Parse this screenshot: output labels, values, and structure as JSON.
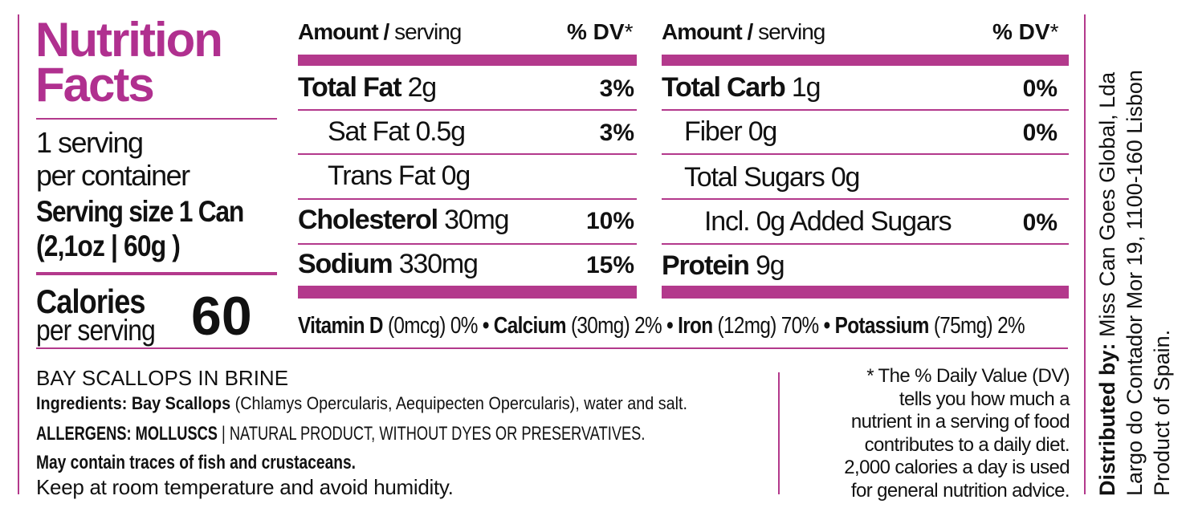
{
  "header": {
    "title_line1": "Nutrition",
    "title_line2": "Facts"
  },
  "servings": {
    "per_container_1": "1 serving",
    "per_container_2": "per container",
    "size_1": "Serving size 1 Can",
    "size_2": "(2,1oz | 60g )"
  },
  "calories": {
    "label": "Calories",
    "sublabel": "per serving",
    "value": 60
  },
  "table_left": {
    "header": {
      "amount": "Amount /",
      "serving": "serving",
      "dv": "% DV",
      "star": "*"
    },
    "rows": [
      {
        "name": "Total Fat",
        "amount": "2g",
        "dv": "3%"
      },
      {
        "name": "Sat Fat",
        "amount": "0.5g",
        "dv": "3%"
      },
      {
        "name": "Trans Fat",
        "amount": "0g"
      },
      {
        "name": "Cholesterol",
        "amount": "30mg",
        "dv": "10%"
      },
      {
        "name": "Sodium",
        "amount": "330mg",
        "dv": "15%"
      }
    ]
  },
  "table_right": {
    "header": {
      "amount": "Amount /",
      "serving": "serving",
      "dv": "% DV",
      "star": "*"
    },
    "rows": [
      {
        "name": "Total Carb",
        "amount": "1g",
        "dv": "0%"
      },
      {
        "name": "Fiber",
        "amount": "0g",
        "dv": "0%"
      },
      {
        "name": "Total Sugars",
        "amount": "0g"
      },
      {
        "name": "Incl. 0g Added Sugars",
        "dv": "0%"
      },
      {
        "name": "Protein",
        "amount": "9g"
      }
    ]
  },
  "vitamins": {
    "separator": "•",
    "items": [
      {
        "name": "Vitamin D",
        "amount": "(0mcg)",
        "dv": "0%"
      },
      {
        "name": "Calcium",
        "amount": "(30mg)",
        "dv": "2%"
      },
      {
        "name": "Iron",
        "amount": "(12mg)",
        "dv": "70%"
      },
      {
        "name": "Potassium",
        "amount": "(75mg)",
        "dv": "2%"
      }
    ]
  },
  "product": {
    "title": "BAY SCALLOPS IN BRINE",
    "ingredients_label": "Ingredients:",
    "ingredients_main": "Bay Scallops",
    "ingredients_rest": "(Chlamys Opercularis, Aequipecten Opercularis), water and salt.",
    "allergens": "ALLERGENS: MOLLUSCS",
    "allergens_rest": "| NATURAL PRODUCT, WITHOUT DYES OR PRESERVATIVES.",
    "traces": "May contain traces of fish and crustaceans.",
    "storage": "Keep at room temperature and avoid humidity."
  },
  "footnote": [
    "* The % Daily Value (DV)",
    "tells you how much a",
    "nutrient in a serving of food",
    "contributes to a daily diet.",
    "2,000 calories a day is used",
    "for general nutrition advice."
  ],
  "distributor": {
    "label": "Distributed by:",
    "name": "Miss Can Goes Global, Lda",
    "address": "Largo do Contador Mor 19, 1100-160 Lisbon",
    "origin": "Product of Spain."
  }
}
